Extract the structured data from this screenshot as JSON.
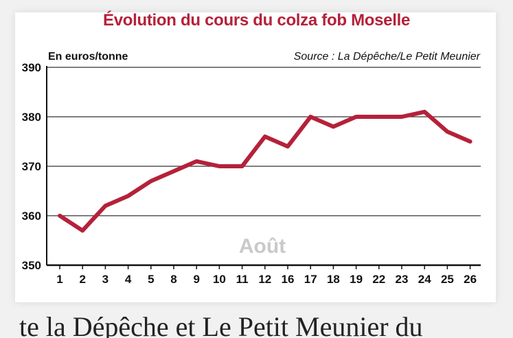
{
  "chart_data": {
    "type": "line",
    "title": "Évolution du cours du colza fob Moselle",
    "ylabel": "En euros/tonne",
    "source": "Source : La Dépêche/Le Petit Meunier",
    "annotation": "Août",
    "categories": [
      "1",
      "2",
      "3",
      "4",
      "5",
      "8",
      "9",
      "10",
      "11",
      "12",
      "16",
      "17",
      "18",
      "19",
      "22",
      "23",
      "24",
      "25",
      "26"
    ],
    "series": [
      {
        "values": [
          360,
          357,
          362,
          364,
          367,
          369,
          371,
          370,
          370,
          376,
          374,
          380,
          378,
          380,
          380,
          380,
          381,
          377,
          375
        ]
      }
    ],
    "ylim": [
      350,
      390
    ],
    "yticks": [
      "390",
      "380",
      "370",
      "360",
      "350"
    ],
    "grid": true,
    "line_color": "#b5213a"
  },
  "page": {
    "below_text": "te la Dépêche et Le Petit Meunier du"
  }
}
